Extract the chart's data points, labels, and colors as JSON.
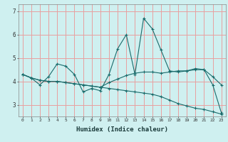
{
  "xlabel": "Humidex (Indice chaleur)",
  "ylabel": "",
  "bg_color": "#cff0f0",
  "grid_color": "#e8a0a0",
  "line_color": "#1a6b6b",
  "xlim": [
    -0.5,
    23.5
  ],
  "ylim": [
    2.5,
    7.3
  ],
  "yticks": [
    3,
    4,
    5,
    6,
    7
  ],
  "xticks": [
    0,
    1,
    2,
    3,
    4,
    5,
    6,
    7,
    8,
    9,
    10,
    11,
    12,
    13,
    14,
    15,
    16,
    17,
    18,
    19,
    20,
    21,
    22,
    23
  ],
  "series1": [
    4.3,
    4.15,
    3.85,
    4.2,
    4.75,
    4.65,
    4.3,
    3.55,
    3.7,
    3.6,
    4.3,
    5.4,
    6.0,
    4.3,
    6.7,
    6.25,
    5.35,
    4.45,
    4.4,
    4.45,
    4.5,
    4.5,
    3.85,
    2.65
  ],
  "series2": [
    4.3,
    4.15,
    4.05,
    4.0,
    4.0,
    3.95,
    3.9,
    3.85,
    3.8,
    3.75,
    3.95,
    4.1,
    4.25,
    4.35,
    4.4,
    4.4,
    4.35,
    4.4,
    4.45,
    4.45,
    4.55,
    4.5,
    4.2,
    3.85
  ],
  "series3": [
    4.3,
    4.15,
    4.05,
    4.0,
    4.0,
    3.95,
    3.9,
    3.85,
    3.8,
    3.75,
    3.7,
    3.65,
    3.6,
    3.55,
    3.5,
    3.45,
    3.35,
    3.2,
    3.05,
    2.95,
    2.85,
    2.8,
    2.7,
    2.6
  ]
}
